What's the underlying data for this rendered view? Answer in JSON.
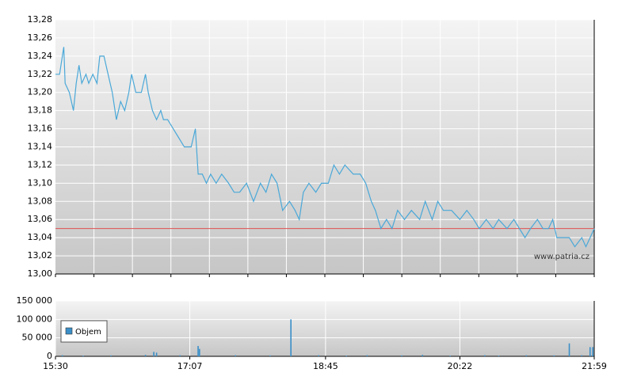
{
  "chart_data": [
    {
      "type": "line",
      "color": "#4aa8d8",
      "xlim": [
        "15:30",
        "21:59"
      ],
      "ylim": [
        13.0,
        13.28
      ],
      "yticks": [
        {
          "value": 13.0,
          "label": "13,00"
        },
        {
          "value": 13.02,
          "label": "13,02"
        },
        {
          "value": 13.04,
          "label": "13,04"
        },
        {
          "value": 13.06,
          "label": "13,06"
        },
        {
          "value": 13.08,
          "label": "13,08"
        },
        {
          "value": 13.1,
          "label": "13,10"
        },
        {
          "value": 13.12,
          "label": "13,12"
        },
        {
          "value": 13.14,
          "label": "13,14"
        },
        {
          "value": 13.16,
          "label": "13,16"
        },
        {
          "value": 13.18,
          "label": "13,18"
        },
        {
          "value": 13.2,
          "label": "13,20"
        },
        {
          "value": 13.22,
          "label": "13,22"
        },
        {
          "value": 13.24,
          "label": "13,24"
        },
        {
          "value": 13.26,
          "label": "13,26"
        },
        {
          "value": 13.28,
          "label": "13,28"
        }
      ],
      "reference_line": {
        "value": 13.05,
        "color": "#e05050"
      },
      "watermark": "www.patria.cz",
      "x": [
        "15:30",
        "15:33",
        "15:35",
        "15:36",
        "15:37",
        "15:40",
        "15:43",
        "15:45",
        "15:47",
        "15:49",
        "15:52",
        "15:54",
        "15:57",
        "16:00",
        "16:02",
        "16:05",
        "16:08",
        "16:11",
        "16:14",
        "16:17",
        "16:20",
        "16:23",
        "16:25",
        "16:28",
        "16:32",
        "16:35",
        "16:37",
        "16:40",
        "16:43",
        "16:46",
        "16:48",
        "16:51",
        "16:55",
        "16:59",
        "17:03",
        "17:08",
        "17:11",
        "17:13",
        "17:16",
        "17:19",
        "17:22",
        "17:26",
        "17:30",
        "17:35",
        "17:39",
        "17:43",
        "17:48",
        "17:53",
        "17:58",
        "18:02",
        "18:06",
        "18:10",
        "18:14",
        "18:19",
        "18:23",
        "18:26",
        "18:29",
        "18:33",
        "18:38",
        "18:42",
        "18:47",
        "18:51",
        "18:55",
        "18:59",
        "19:05",
        "19:10",
        "19:14",
        "19:18",
        "19:21",
        "19:25",
        "19:29",
        "19:33",
        "19:37",
        "19:42",
        "19:47",
        "19:53",
        "19:57",
        "20:02",
        "20:06",
        "20:10",
        "20:16",
        "20:22",
        "20:27",
        "20:32",
        "20:36",
        "20:41",
        "20:46",
        "20:50",
        "20:56",
        "21:01",
        "21:05",
        "21:09",
        "21:13",
        "21:18",
        "21:22",
        "21:26",
        "21:29",
        "21:32",
        "21:36",
        "21:41",
        "21:45",
        "21:50",
        "21:53",
        "21:56",
        "21:59"
      ],
      "values": [
        13.22,
        13.22,
        13.24,
        13.25,
        13.21,
        13.2,
        13.18,
        13.21,
        13.23,
        13.21,
        13.22,
        13.21,
        13.22,
        13.21,
        13.24,
        13.24,
        13.22,
        13.2,
        13.17,
        13.19,
        13.18,
        13.2,
        13.22,
        13.2,
        13.2,
        13.22,
        13.2,
        13.18,
        13.17,
        13.18,
        13.17,
        13.17,
        13.16,
        13.15,
        13.14,
        13.14,
        13.16,
        13.11,
        13.11,
        13.1,
        13.11,
        13.1,
        13.11,
        13.1,
        13.09,
        13.09,
        13.1,
        13.08,
        13.1,
        13.09,
        13.11,
        13.1,
        13.07,
        13.08,
        13.07,
        13.06,
        13.09,
        13.1,
        13.09,
        13.1,
        13.1,
        13.12,
        13.11,
        13.12,
        13.11,
        13.11,
        13.1,
        13.08,
        13.07,
        13.05,
        13.06,
        13.05,
        13.07,
        13.06,
        13.07,
        13.06,
        13.08,
        13.06,
        13.08,
        13.07,
        13.07,
        13.06,
        13.07,
        13.06,
        13.05,
        13.06,
        13.05,
        13.06,
        13.05,
        13.06,
        13.05,
        13.04,
        13.05,
        13.06,
        13.05,
        13.05,
        13.06,
        13.04,
        13.04,
        13.04,
        13.03,
        13.04,
        13.03,
        13.04,
        13.05
      ]
    },
    {
      "type": "bar",
      "xlim": [
        "15:30",
        "21:59"
      ],
      "xticks": [
        "15:30",
        "17:07",
        "18:45",
        "20:22",
        "21:59"
      ],
      "ylim": [
        0,
        150000
      ],
      "yticks": [
        0,
        {
          "value": 50000,
          "label": "50 000"
        },
        {
          "value": 100000,
          "label": "100 000"
        },
        {
          "value": 150000,
          "label": "150 000"
        }
      ],
      "series": [
        {
          "name": "Objem",
          "color": "#3a8fc8",
          "x": [
            "15:35",
            "15:50",
            "16:10",
            "16:35",
            "16:41",
            "16:43",
            "17:00",
            "17:13",
            "17:14",
            "17:40",
            "18:05",
            "18:20",
            "18:40",
            "19:00",
            "19:15",
            "19:40",
            "19:55",
            "20:15",
            "20:40",
            "20:50",
            "21:10",
            "21:30",
            "21:41",
            "21:50",
            "21:56",
            "21:58"
          ],
          "values": [
            3000,
            2000,
            2500,
            4000,
            12000,
            10000,
            3000,
            28000,
            20000,
            3000,
            2500,
            100000,
            3000,
            2000,
            3000,
            2500,
            4000,
            2000,
            3000,
            2000,
            3000,
            2500,
            35000,
            3000,
            25000,
            25000
          ]
        }
      ]
    }
  ]
}
